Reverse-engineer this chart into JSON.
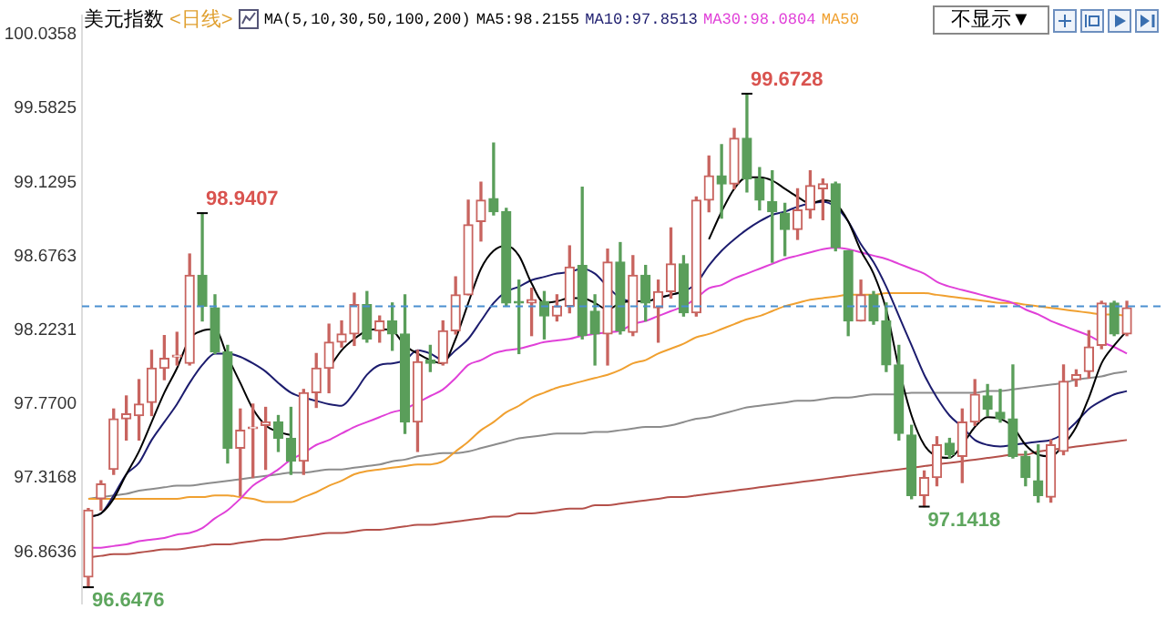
{
  "chart_data": {
    "type": "candlestick",
    "title": "美元指数",
    "subtitle": "<日线>",
    "annotations": [
      "MA(5,10,30,50,100,200)",
      "不显示▼",
      "98.9407",
      "99.6728",
      "96.6476",
      "97.1418"
    ],
    "categories": [
      null,
      null,
      null,
      null,
      null,
      null,
      null,
      null,
      null,
      null,
      null,
      null,
      null,
      null,
      null,
      null,
      null,
      null,
      null,
      null,
      null,
      null,
      null,
      null,
      null,
      null,
      null,
      null,
      null,
      null,
      null,
      null,
      null,
      null,
      null,
      null,
      null,
      null,
      null,
      null,
      null,
      null,
      null,
      null,
      null,
      null,
      null,
      null,
      null,
      null,
      null,
      null,
      null,
      null,
      null,
      null,
      null,
      null,
      null,
      null,
      null,
      null,
      null,
      null,
      null,
      null,
      null,
      null,
      null,
      null,
      null,
      null,
      null,
      null,
      null,
      null,
      null,
      null,
      null,
      null,
      null,
      null,
      null
    ],
    "ohlc": [
      [
        96.71,
        97.13,
        96.6476,
        97.12
      ],
      [
        97.19,
        97.3,
        97.12,
        97.28
      ],
      [
        97.37,
        97.74,
        97.34,
        97.68
      ],
      [
        97.68,
        97.82,
        97.55,
        97.71
      ],
      [
        97.7,
        97.92,
        97.55,
        97.77
      ],
      [
        97.78,
        98.1,
        97.7,
        97.99
      ],
      [
        97.99,
        98.19,
        97.92,
        98.05
      ],
      [
        98.06,
        98.21,
        98.01,
        98.07
      ],
      [
        98.02,
        98.69,
        98.01,
        98.56
      ],
      [
        98.56,
        98.9407,
        98.28,
        98.37
      ],
      [
        98.36,
        98.44,
        98.08,
        98.09
      ],
      [
        98.09,
        98.13,
        97.41,
        97.5
      ],
      [
        97.5,
        97.74,
        97.21,
        97.61
      ],
      [
        97.62,
        97.77,
        97.32,
        97.63
      ],
      [
        97.64,
        97.75,
        97.37,
        97.66
      ],
      [
        97.66,
        97.7,
        97.48,
        97.56
      ],
      [
        97.56,
        97.75,
        97.34,
        97.42
      ],
      [
        97.42,
        97.86,
        97.34,
        97.84
      ],
      [
        97.84,
        98.08,
        97.75,
        97.99
      ],
      [
        97.99,
        98.26,
        97.84,
        98.15
      ],
      [
        98.15,
        98.28,
        98.12,
        98.2
      ],
      [
        98.2,
        98.45,
        98.13,
        98.38
      ],
      [
        98.38,
        98.46,
        98.15,
        98.17
      ],
      [
        98.22,
        98.31,
        98.15,
        98.28
      ],
      [
        98.28,
        98.39,
        98.1,
        98.2
      ],
      [
        98.2,
        98.44,
        97.59,
        97.66
      ],
      [
        97.66,
        98.1,
        97.48,
        98.03
      ],
      [
        98.04,
        98.13,
        97.97,
        98.02
      ],
      [
        98.02,
        98.28,
        98.01,
        98.22
      ],
      [
        98.22,
        98.55,
        98.2,
        98.44
      ],
      [
        98.44,
        99.02,
        98.44,
        98.87
      ],
      [
        98.89,
        99.13,
        98.77,
        99.02
      ],
      [
        99.03,
        99.37,
        98.93,
        98.95
      ],
      [
        98.95,
        98.97,
        98.37,
        98.39
      ],
      [
        98.4,
        98.53,
        98.08,
        98.39
      ],
      [
        98.39,
        98.48,
        98.19,
        98.41
      ],
      [
        98.4,
        98.46,
        98.17,
        98.31
      ],
      [
        98.31,
        98.44,
        98.28,
        98.37
      ],
      [
        98.37,
        98.74,
        98.33,
        98.61
      ],
      [
        98.62,
        99.1,
        98.17,
        98.19
      ],
      [
        98.34,
        98.44,
        98.01,
        98.2
      ],
      [
        98.2,
        98.72,
        98.01,
        98.64
      ],
      [
        98.64,
        98.76,
        98.2,
        98.22
      ],
      [
        98.21,
        98.68,
        98.19,
        98.56
      ],
      [
        98.56,
        98.62,
        98.28,
        98.39
      ],
      [
        98.36,
        98.53,
        98.15,
        98.46
      ],
      [
        98.46,
        98.85,
        98.42,
        98.63
      ],
      [
        98.63,
        98.68,
        98.31,
        98.33
      ],
      [
        98.33,
        99.04,
        98.31,
        99.02
      ],
      [
        99.02,
        99.29,
        98.95,
        99.17
      ],
      [
        99.17,
        99.36,
        98.91,
        99.12
      ],
      [
        99.12,
        99.46,
        99.09,
        99.4
      ],
      [
        99.4,
        99.6728,
        99.07,
        99.15
      ],
      [
        99.15,
        99.22,
        98.96,
        99.02
      ],
      [
        99.01,
        99.2,
        98.64,
        98.95
      ],
      [
        98.94,
        99.0,
        98.68,
        98.84
      ],
      [
        98.84,
        99.09,
        98.78,
        98.96
      ],
      [
        98.96,
        99.2,
        98.91,
        99.11
      ],
      [
        99.09,
        99.15,
        98.9,
        99.12
      ],
      [
        99.12,
        99.13,
        98.71,
        98.73
      ],
      [
        98.71,
        98.71,
        98.19,
        98.28
      ],
      [
        98.28,
        98.53,
        98.28,
        98.44
      ],
      [
        98.44,
        98.46,
        98.26,
        98.28
      ],
      [
        98.28,
        98.39,
        97.97,
        98.01
      ],
      [
        98.01,
        98.13,
        97.55,
        97.59
      ],
      [
        97.58,
        97.64,
        97.19,
        97.21
      ],
      [
        97.21,
        97.36,
        97.1418,
        97.32
      ],
      [
        97.32,
        97.57,
        97.27,
        97.52
      ],
      [
        97.53,
        97.56,
        97.44,
        97.46
      ],
      [
        97.45,
        97.74,
        97.29,
        97.66
      ],
      [
        97.66,
        97.92,
        97.64,
        97.83
      ],
      [
        97.82,
        97.89,
        97.7,
        97.74
      ],
      [
        97.72,
        97.86,
        97.66,
        97.68
      ],
      [
        97.68,
        98.01,
        97.44,
        97.45
      ],
      [
        97.45,
        97.48,
        97.27,
        97.32
      ],
      [
        97.3,
        97.52,
        97.17,
        97.21
      ],
      [
        97.2,
        97.55,
        97.17,
        97.52
      ],
      [
        97.48,
        98.01,
        97.46,
        97.91
      ],
      [
        97.92,
        97.98,
        97.88,
        97.95
      ],
      [
        97.97,
        98.22,
        97.93,
        98.12
      ],
      [
        98.13,
        98.4,
        98.11,
        98.39
      ],
      [
        98.39,
        98.4,
        98.19,
        98.2
      ],
      [
        98.2,
        98.4,
        98.19,
        98.36
      ]
    ],
    "colors": [
      "#c8645f",
      "#c8645f",
      "#c8645f",
      "#c8645f",
      "#c8645f",
      "#c8645f",
      "#c8645f",
      "#c8645f",
      "#c8645f",
      "#5a9e5a",
      "#5a9e5a",
      "#5a9e5a",
      "#c8645f",
      "#c8645f",
      "#c8645f",
      "#5a9e5a",
      "#5a9e5a",
      "#c8645f",
      "#c8645f",
      "#c8645f",
      "#c8645f",
      "#c8645f",
      "#5a9e5a",
      "#c8645f",
      "#5a9e5a",
      "#5a9e5a",
      "#c8645f",
      "#5a9e5a",
      "#c8645f",
      "#c8645f",
      "#c8645f",
      "#c8645f",
      "#5a9e5a",
      "#5a9e5a",
      "#5a9e5a",
      "#c8645f",
      "#5a9e5a",
      "#c8645f",
      "#c8645f",
      "#5a9e5a",
      "#5a9e5a",
      "#c8645f",
      "#5a9e5a",
      "#c8645f",
      "#5a9e5a",
      "#c8645f",
      "#c8645f",
      "#5a9e5a",
      "#c8645f",
      "#c8645f",
      "#5a9e5a",
      "#c8645f",
      "#5a9e5a",
      "#5a9e5a",
      "#5a9e5a",
      "#5a9e5a",
      "#c8645f",
      "#c8645f",
      "#c8645f",
      "#5a9e5a",
      "#5a9e5a",
      "#c8645f",
      "#5a9e5a",
      "#5a9e5a",
      "#5a9e5a",
      "#5a9e5a",
      "#c8645f",
      "#c8645f",
      "#5a9e5a",
      "#c8645f",
      "#c8645f",
      "#5a9e5a",
      "#5a9e5a",
      "#5a9e5a",
      "#5a9e5a",
      "#5a9e5a",
      "#c8645f",
      "#c8645f",
      "#c8645f",
      "#c8645f",
      "#c8645f",
      "#5a9e5a",
      "#c8645f"
    ],
    "series": [
      {
        "type": "line",
        "name": "MA5:98.2155",
        "color": "#000000",
        "values": [
          97.08,
          97.1,
          97.19,
          97.34,
          97.48,
          97.66,
          97.84,
          97.99,
          98.17,
          98.22,
          98.23,
          98.06,
          97.9,
          97.74,
          97.64,
          97.6,
          97.58,
          null,
          null,
          97.99,
          98.1,
          98.17,
          98.22,
          98.23,
          98.22,
          98.13,
          98.08,
          98.04,
          98.02,
          98.17,
          98.39,
          98.6,
          98.71,
          98.74,
          98.68,
          98.51,
          98.39,
          98.4,
          98.42,
          98.42,
          98.39,
          98.35,
          98.39,
          98.4,
          98.4,
          98.42,
          98.44,
          98.46,
          null,
          98.78,
          98.95,
          99.09,
          99.16,
          99.16,
          99.14,
          99.09,
          99.04,
          99.0,
          99.02,
          99.0,
          98.89,
          98.71,
          98.57,
          98.35,
          97.99,
          97.7,
          97.52,
          97.45,
          97.44,
          97.52,
          97.63,
          97.69,
          97.68,
          97.63,
          97.52,
          97.46,
          97.45,
          97.52,
          97.63,
          97.81,
          98.02,
          98.13,
          98.22
        ]
      },
      {
        "type": "line",
        "name": "MA10:97.8513",
        "color": "#1c1c6e",
        "values": [
          97.08,
          97.1,
          97.21,
          97.34,
          97.41,
          97.55,
          97.66,
          97.77,
          97.9,
          98.01,
          98.08,
          98.08,
          98.06,
          98.02,
          97.97,
          97.9,
          97.84,
          97.81,
          97.79,
          97.77,
          97.76,
          97.84,
          97.95,
          98.01,
          98.02,
          98.04,
          98.1,
          98.08,
          98.04,
          98.1,
          98.17,
          98.28,
          98.39,
          98.46,
          98.49,
          98.53,
          98.55,
          98.57,
          98.58,
          98.6,
          98.57,
          98.49,
          98.42,
          98.4,
          98.4,
          98.42,
          98.44,
          98.46,
          98.51,
          98.62,
          98.71,
          98.78,
          98.84,
          98.89,
          98.93,
          98.95,
          98.98,
          99.0,
          99.01,
          98.98,
          98.89,
          98.75,
          98.64,
          98.49,
          98.31,
          98.13,
          97.95,
          97.81,
          97.7,
          97.63,
          97.55,
          97.52,
          97.51,
          97.52,
          97.53,
          97.54,
          97.55,
          97.59,
          97.66,
          97.74,
          97.79,
          97.83,
          97.85
        ]
      },
      {
        "type": "line",
        "name": "MA30:98.0804",
        "color": "#e040d8",
        "values": [
          96.89,
          96.89,
          96.9,
          96.91,
          96.93,
          96.94,
          96.95,
          96.97,
          96.98,
          97.01,
          97.07,
          97.12,
          97.19,
          97.27,
          97.32,
          97.37,
          97.43,
          97.47,
          97.52,
          97.55,
          97.59,
          97.63,
          97.66,
          97.69,
          97.72,
          97.74,
          97.78,
          97.82,
          97.86,
          97.93,
          98.01,
          98.04,
          98.08,
          98.1,
          98.11,
          98.13,
          98.15,
          98.16,
          98.17,
          98.19,
          98.2,
          98.21,
          98.22,
          98.26,
          98.28,
          98.31,
          98.34,
          98.37,
          98.42,
          98.48,
          98.5,
          98.54,
          98.57,
          98.6,
          98.63,
          98.66,
          98.68,
          98.7,
          98.72,
          98.73,
          98.72,
          98.7,
          98.68,
          98.66,
          98.63,
          98.6,
          98.57,
          98.52,
          98.49,
          98.47,
          98.45,
          98.43,
          98.41,
          98.39,
          98.35,
          98.32,
          98.28,
          98.25,
          98.22,
          98.19,
          98.15,
          98.12,
          98.08
        ]
      },
      {
        "type": "line",
        "name": "MA50",
        "color": "#f0a030",
        "values": [
          97.19,
          97.19,
          97.19,
          97.19,
          97.19,
          97.19,
          97.19,
          97.19,
          97.2,
          97.2,
          97.21,
          97.21,
          97.2,
          97.19,
          97.17,
          97.17,
          97.17,
          97.2,
          97.23,
          97.27,
          97.3,
          97.34,
          97.36,
          97.37,
          97.38,
          97.39,
          97.4,
          97.4,
          97.42,
          97.48,
          97.54,
          97.61,
          97.66,
          97.72,
          97.76,
          97.81,
          97.84,
          97.87,
          97.89,
          97.91,
          97.93,
          97.95,
          97.98,
          98.02,
          98.04,
          98.08,
          98.11,
          98.14,
          98.18,
          98.2,
          98.23,
          98.26,
          98.29,
          98.31,
          98.34,
          98.37,
          98.39,
          98.41,
          98.42,
          98.43,
          98.44,
          98.44,
          98.44,
          98.45,
          98.45,
          98.45,
          98.45,
          98.44,
          98.43,
          98.42,
          98.41,
          98.4,
          98.39,
          98.39,
          98.38,
          98.37,
          98.36,
          98.35,
          98.34,
          98.33,
          98.32,
          98.32,
          98.31
        ]
      },
      {
        "type": "line",
        "color": "#8c8c8c",
        "values": [
          97.19,
          97.2,
          97.21,
          97.22,
          97.24,
          97.25,
          97.26,
          97.27,
          97.27,
          97.28,
          97.29,
          97.3,
          97.31,
          97.32,
          97.33,
          97.34,
          97.35,
          97.35,
          97.36,
          97.37,
          97.37,
          97.38,
          97.39,
          97.4,
          97.42,
          97.43,
          97.45,
          97.46,
          97.47,
          97.47,
          97.48,
          97.5,
          97.52,
          97.54,
          97.56,
          97.57,
          97.58,
          97.59,
          97.59,
          97.59,
          97.6,
          97.6,
          97.61,
          97.62,
          97.63,
          97.63,
          97.64,
          97.66,
          97.68,
          97.69,
          97.71,
          97.73,
          97.75,
          97.76,
          97.77,
          97.78,
          97.79,
          97.79,
          97.8,
          97.81,
          97.81,
          97.82,
          97.83,
          97.83,
          97.83,
          97.84,
          97.84,
          97.84,
          97.84,
          97.84,
          97.84,
          97.85,
          97.85,
          97.86,
          97.87,
          97.88,
          97.89,
          97.9,
          97.92,
          97.93,
          97.94,
          97.96,
          97.97
        ]
      },
      {
        "type": "line",
        "color": "#b4504a",
        "values": [
          96.83,
          96.84,
          96.85,
          96.85,
          96.86,
          96.87,
          96.88,
          96.88,
          96.89,
          96.9,
          96.91,
          96.91,
          96.92,
          96.93,
          96.94,
          96.94,
          96.95,
          96.96,
          96.97,
          96.98,
          96.98,
          96.99,
          97.0,
          97.0,
          97.01,
          97.02,
          97.03,
          97.03,
          97.04,
          97.05,
          97.06,
          97.07,
          97.08,
          97.08,
          97.1,
          97.1,
          97.11,
          97.12,
          97.13,
          97.13,
          97.15,
          97.15,
          97.16,
          97.17,
          97.18,
          97.19,
          97.2,
          97.2,
          97.21,
          97.22,
          97.23,
          97.24,
          97.25,
          97.26,
          97.27,
          97.28,
          97.29,
          97.3,
          97.31,
          97.32,
          97.33,
          97.34,
          97.35,
          97.36,
          97.37,
          97.38,
          97.39,
          97.4,
          97.41,
          97.42,
          97.43,
          97.44,
          97.45,
          97.46,
          97.46,
          97.48,
          97.49,
          97.5,
          97.51,
          97.52,
          97.53,
          97.54,
          97.55
        ]
      }
    ],
    "ylim": [
      96.55,
      100.15
    ],
    "yticks": [
      96.8636,
      97.3168,
      {
        "value": 97.77,
        "label": "97.7700"
      },
      98.2231,
      98.6763,
      99.1295,
      99.5825,
      100.0358
    ],
    "ref_lines": [
      {
        "axis": "y",
        "value": 98.37,
        "color": "#4a8fd0",
        "line_style": "dashed"
      }
    ],
    "legend": "top right",
    "tick_labels": "y"
  }
}
